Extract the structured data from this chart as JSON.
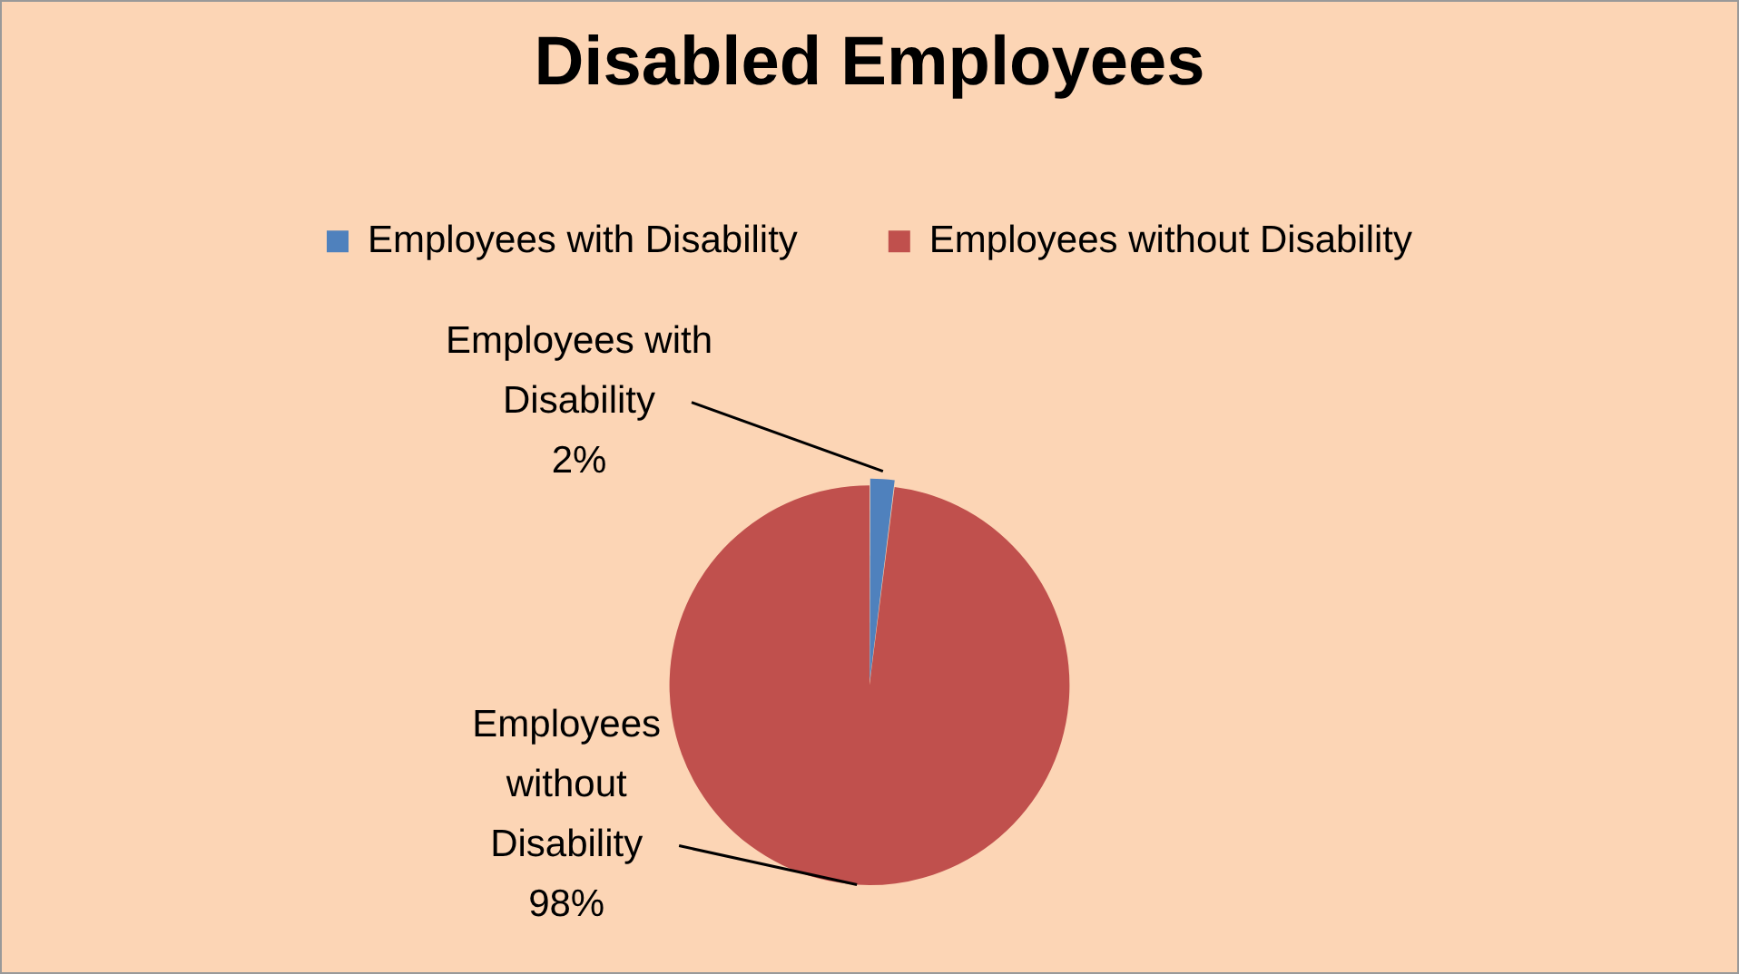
{
  "chart_data": {
    "type": "pie",
    "title": "Disabled Employees",
    "categories": [
      "Employees with Disability",
      "Employees without Disability"
    ],
    "values": [
      2,
      98
    ],
    "value_labels": [
      "2%",
      "98%"
    ],
    "colors": [
      "#4f81bd",
      "#c0504d"
    ],
    "legend": "top"
  }
}
